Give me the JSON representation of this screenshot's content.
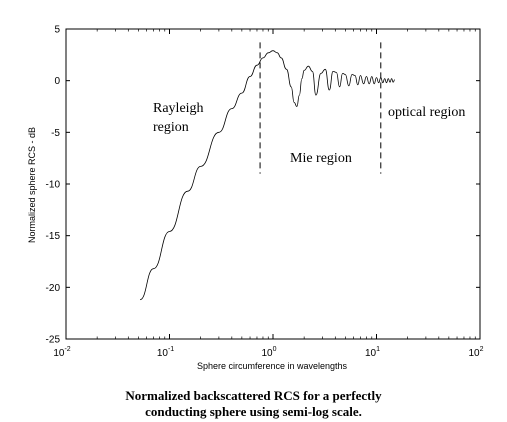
{
  "chart_data": {
    "type": "line",
    "title": "",
    "xlabel": "Sphere circumference in wavelengths",
    "ylabel": "Normalized sphere RCS - dB",
    "xscale": "log",
    "xlim": [
      0.01,
      100
    ],
    "ylim": [
      -25,
      5
    ],
    "grid": false,
    "x_ticks": [
      {
        "base": "10",
        "exp": "-2",
        "value": 0.01
      },
      {
        "base": "10",
        "exp": "-1",
        "value": 0.1
      },
      {
        "base": "10",
        "exp": "0",
        "value": 1
      },
      {
        "base": "10",
        "exp": "1",
        "value": 10
      },
      {
        "base": "10",
        "exp": "2",
        "value": 100
      }
    ],
    "y_ticks": [
      "5",
      "0",
      "-5",
      "-10",
      "-15",
      "-20",
      "-25"
    ],
    "y_tick_values": [
      5,
      0,
      -5,
      -10,
      -15,
      -20,
      -25
    ],
    "series": [
      {
        "x": [
          0.052,
          0.07,
          0.1,
          0.15,
          0.2,
          0.3,
          0.4,
          0.5,
          0.6,
          0.7,
          0.8,
          0.9,
          1.0,
          1.1,
          1.2,
          1.35,
          1.5,
          1.6,
          1.7,
          1.8,
          1.9,
          2.0,
          2.2,
          2.4,
          2.6,
          2.9,
          3.2,
          3.5,
          3.8,
          4.1,
          4.4,
          4.7,
          5.0,
          5.4,
          5.8,
          6.2,
          6.6,
          7.0,
          7.5,
          8.0,
          8.5,
          9.0,
          9.5,
          10.0,
          10.5,
          11.0,
          11.5,
          12.0,
          12.5,
          13.0,
          13.5,
          14.0,
          14.5,
          15.0
        ],
        "y": [
          -21.2,
          -18.2,
          -14.6,
          -10.7,
          -8.3,
          -5.0,
          -2.7,
          -1.2,
          0.4,
          1.5,
          2.2,
          2.7,
          2.9,
          2.7,
          2.2,
          1.1,
          -0.6,
          -2.1,
          -2.5,
          -1.4,
          0.2,
          1.0,
          1.4,
          0.9,
          -1.4,
          0.7,
          1.1,
          -0.9,
          0.9,
          0.8,
          -0.6,
          0.7,
          0.6,
          -0.5,
          0.6,
          0.5,
          -0.4,
          0.5,
          -0.3,
          0.4,
          -0.3,
          0.4,
          -0.3,
          0.3,
          -0.2,
          0.3,
          -0.2,
          0.2,
          -0.2,
          0.2,
          -0.15,
          0.2,
          -0.15,
          0.1
        ]
      }
    ],
    "region_dividers_x": [
      0.75,
      11.0
    ],
    "region_labels": [
      "Rayleigh",
      "region",
      "Mie region",
      "optical region"
    ]
  },
  "caption": {
    "line1": "Normalized backscattered RCS for a perfectly",
    "line2": "conducting sphere using semi-log scale."
  },
  "colors": {
    "line": "#000000",
    "frame": "#000000",
    "background": "#ffffff"
  }
}
